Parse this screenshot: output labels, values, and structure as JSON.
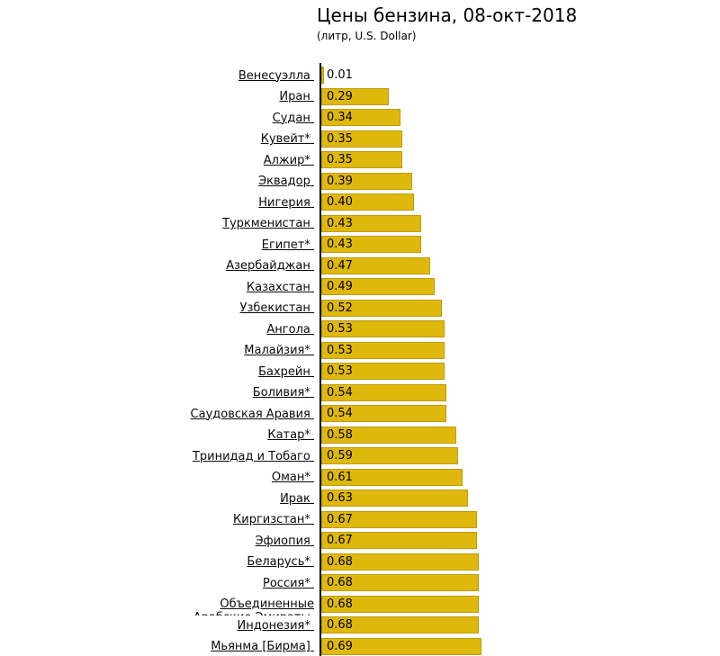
{
  "title": "Цены бензина, 08-окт-2018",
  "subtitle": "(литр, U.S. Dollar)",
  "chart_data": {
    "type": "bar",
    "orientation": "horizontal",
    "title": "Цены бензина, 08-окт-2018",
    "subtitle": "(литр, U.S. Dollar)",
    "xlabel": "",
    "ylabel": "",
    "xlim": [
      0,
      0.69
    ],
    "grid": false,
    "legend": null,
    "value_label_format": "0.00",
    "categories": [
      "Венесуэлла",
      "Иран",
      "Судан",
      "Кувейт*",
      "Алжир*",
      "Эквадор",
      "Нигерия",
      "Туркменистан",
      "Египет*",
      "Азербайджан",
      "Казахстан",
      "Узбекистан",
      "Ангола",
      "Малайзия*",
      "Бахрейн",
      "Боливия*",
      "Саудовская Аравия",
      "Катар*",
      "Тринидад и Тобаго",
      "Оман*",
      "Ирак",
      "Киргизстан*",
      "Эфиопия",
      "Беларусь*",
      "Россия*",
      "Объединенные\nАрабские Эмираты",
      "Индонезия*",
      "Мьянма [Бирма]"
    ],
    "values": [
      0.01,
      0.29,
      0.34,
      0.35,
      0.35,
      0.39,
      0.4,
      0.43,
      0.43,
      0.47,
      0.49,
      0.52,
      0.53,
      0.53,
      0.53,
      0.54,
      0.54,
      0.58,
      0.59,
      0.61,
      0.63,
      0.67,
      0.67,
      0.68,
      0.68,
      0.68,
      0.68,
      0.69
    ],
    "colors": {
      "bar_fill": "#dfb80d",
      "bar_border": "#be9b06",
      "axis": "#000000",
      "text": "#000000"
    }
  }
}
